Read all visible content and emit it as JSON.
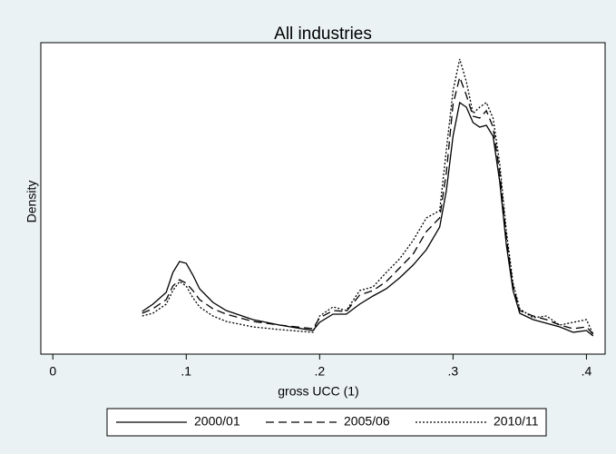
{
  "chart_data": {
    "type": "line",
    "title": "All industries",
    "x_label": "gross UCC (1)",
    "y_label": "Density",
    "x": [
      0.067,
      0.075,
      0.085,
      0.09,
      0.095,
      0.1,
      0.105,
      0.11,
      0.12,
      0.13,
      0.15,
      0.17,
      0.195,
      0.2,
      0.21,
      0.22,
      0.23,
      0.24,
      0.25,
      0.26,
      0.27,
      0.28,
      0.29,
      0.295,
      0.3,
      0.305,
      0.31,
      0.315,
      0.32,
      0.325,
      0.33,
      0.335,
      0.34,
      0.345,
      0.35,
      0.36,
      0.37,
      0.38,
      0.39,
      0.4,
      0.405
    ],
    "series": [
      {
        "name": "2000/01",
        "color": "#000000",
        "style": "solid",
        "values": [
          4.7,
          5.5,
          6.8,
          9.0,
          10.2,
          10.0,
          8.7,
          7.2,
          5.7,
          4.8,
          3.8,
          3.2,
          2.6,
          3.5,
          4.4,
          4.4,
          5.5,
          6.4,
          7.2,
          8.4,
          9.8,
          11.5,
          14.0,
          18.0,
          24.0,
          27.7,
          27.2,
          25.5,
          25.0,
          25.2,
          24.0,
          19.0,
          12.0,
          7.0,
          4.5,
          3.8,
          3.4,
          3.0,
          2.4,
          2.6,
          2.0
        ]
      },
      {
        "name": "2005/06",
        "color": "#000000",
        "style": "dashed",
        "values": [
          4.5,
          5.0,
          6.0,
          7.5,
          8.2,
          7.8,
          7.0,
          6.0,
          5.0,
          4.4,
          3.6,
          3.2,
          2.8,
          4.0,
          4.8,
          4.7,
          6.5,
          7.0,
          8.0,
          9.5,
          11.0,
          13.5,
          15.0,
          20.0,
          27.5,
          30.5,
          28.5,
          26.2,
          26.0,
          26.8,
          25.0,
          20.0,
          12.8,
          7.5,
          4.8,
          4.2,
          3.8,
          3.2,
          2.8,
          3.0,
          2.2
        ]
      },
      {
        "name": "2010/11",
        "color": "#000000",
        "style": "dotted",
        "values": [
          4.2,
          4.5,
          5.5,
          7.0,
          8.0,
          7.5,
          6.2,
          5.2,
          4.2,
          3.6,
          3.0,
          2.7,
          2.4,
          4.2,
          5.2,
          4.8,
          7.0,
          7.4,
          9.0,
          10.5,
          12.5,
          15.0,
          15.8,
          22.5,
          29.0,
          32.5,
          30.0,
          26.5,
          27.2,
          27.7,
          26.0,
          21.0,
          13.5,
          7.8,
          5.0,
          4.0,
          4.2,
          3.2,
          3.5,
          3.8,
          2.2
        ]
      }
    ],
    "xlim": [
      -0.009,
      0.414
    ],
    "xticks": [
      0,
      {
        "value": 0.1,
        "label": ".1"
      },
      {
        "value": 0.2,
        "label": ".2"
      },
      {
        "value": 0.3,
        "label": ".3"
      },
      {
        "value": 0.4,
        "label": ".4"
      }
    ],
    "ylim": [
      0,
      34.3
    ],
    "legend": "bottom"
  }
}
